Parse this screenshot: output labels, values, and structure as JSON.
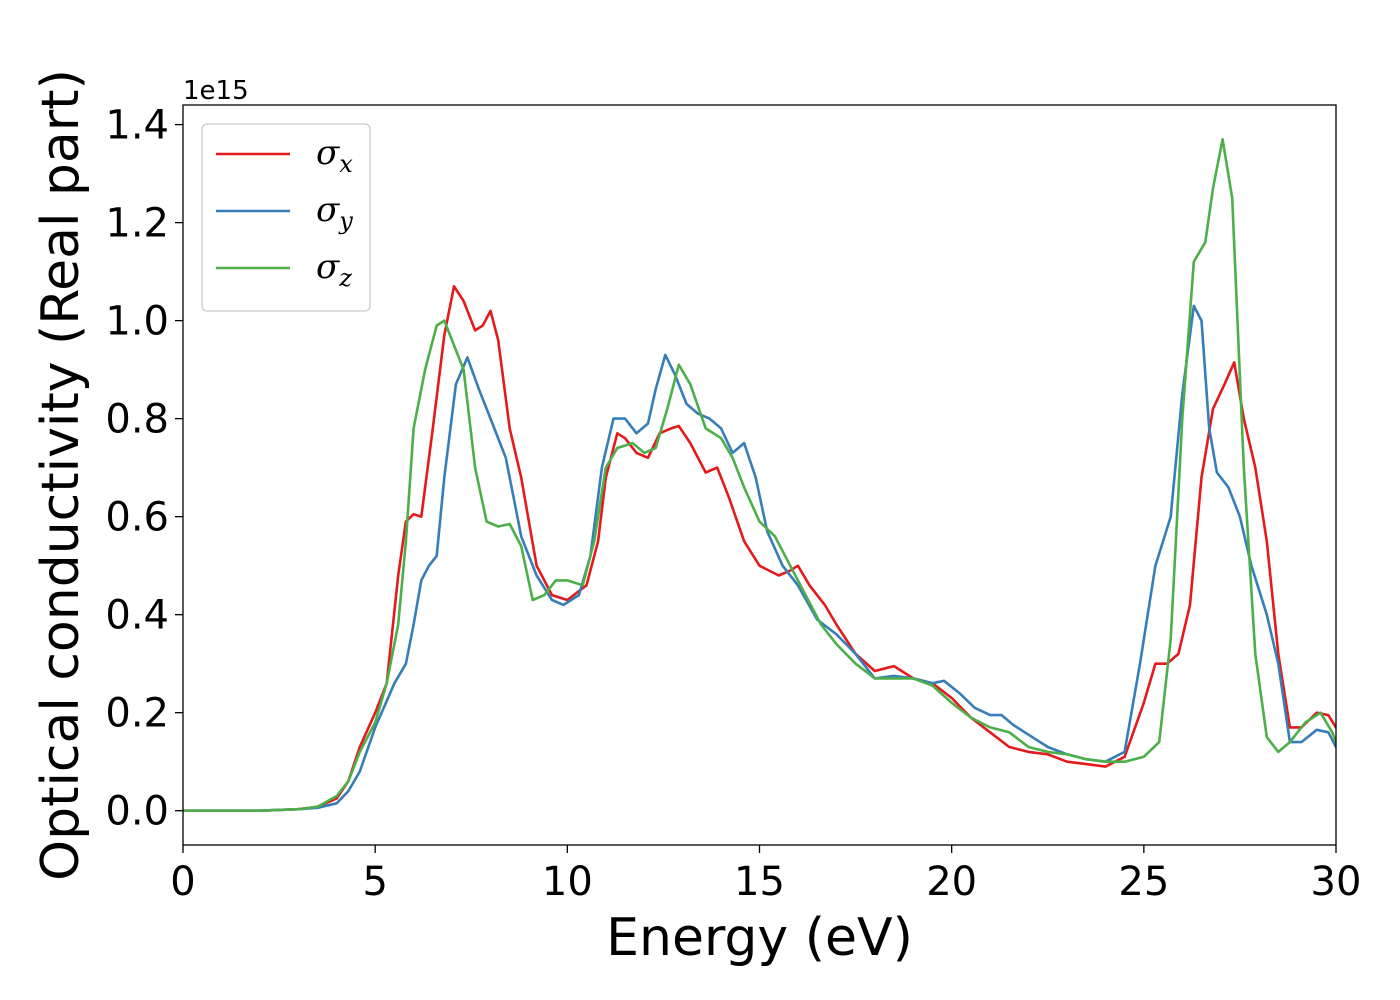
{
  "chart_data": {
    "type": "line",
    "xlabel": "Energy (eV)",
    "ylabel": "Optical conductivity (Real part)",
    "offset_text": "1e15",
    "xlim": [
      0,
      30
    ],
    "ylim": [
      -0.07,
      1.44
    ],
    "x_ticks": [
      0,
      5,
      10,
      15,
      20,
      25,
      30
    ],
    "x_tick_labels": [
      "0",
      "5",
      "10",
      "15",
      "20",
      "25",
      "30"
    ],
    "y_ticks": [
      0.0,
      0.2,
      0.4,
      0.6,
      0.8,
      1.0,
      1.2,
      1.4
    ],
    "y_tick_labels": [
      "0.0",
      "0.2",
      "0.4",
      "0.6",
      "0.8",
      "1.0",
      "1.2",
      "1.4"
    ],
    "grid": false,
    "legend_position": "top-left",
    "series": [
      {
        "name": "σx",
        "symbol": "σ",
        "subscript": "x",
        "color": "#e41a1c",
        "points": [
          [
            0,
            0
          ],
          [
            2,
            0
          ],
          [
            3,
            0.003
          ],
          [
            3.5,
            0.008
          ],
          [
            4,
            0.025
          ],
          [
            4.3,
            0.06
          ],
          [
            4.6,
            0.13
          ],
          [
            5,
            0.2
          ],
          [
            5.3,
            0.26
          ],
          [
            5.6,
            0.48
          ],
          [
            5.8,
            0.59
          ],
          [
            6,
            0.605
          ],
          [
            6.2,
            0.6
          ],
          [
            6.5,
            0.78
          ],
          [
            6.8,
            0.97
          ],
          [
            7.05,
            1.07
          ],
          [
            7.3,
            1.04
          ],
          [
            7.6,
            0.98
          ],
          [
            7.8,
            0.99
          ],
          [
            8,
            1.02
          ],
          [
            8.2,
            0.96
          ],
          [
            8.5,
            0.78
          ],
          [
            8.8,
            0.68
          ],
          [
            9.2,
            0.5
          ],
          [
            9.6,
            0.44
          ],
          [
            10,
            0.43
          ],
          [
            10.5,
            0.46
          ],
          [
            10.8,
            0.55
          ],
          [
            11,
            0.68
          ],
          [
            11.3,
            0.77
          ],
          [
            11.5,
            0.76
          ],
          [
            11.8,
            0.73
          ],
          [
            12.1,
            0.72
          ],
          [
            12.4,
            0.77
          ],
          [
            12.7,
            0.78
          ],
          [
            12.9,
            0.785
          ],
          [
            13.2,
            0.75
          ],
          [
            13.6,
            0.69
          ],
          [
            13.9,
            0.7
          ],
          [
            14.2,
            0.64
          ],
          [
            14.6,
            0.55
          ],
          [
            15,
            0.5
          ],
          [
            15.5,
            0.48
          ],
          [
            15.8,
            0.49
          ],
          [
            16,
            0.5
          ],
          [
            16.3,
            0.46
          ],
          [
            16.7,
            0.42
          ],
          [
            17,
            0.38
          ],
          [
            17.5,
            0.32
          ],
          [
            18,
            0.285
          ],
          [
            18.5,
            0.295
          ],
          [
            19,
            0.27
          ],
          [
            19.5,
            0.26
          ],
          [
            20,
            0.23
          ],
          [
            20.5,
            0.19
          ],
          [
            21,
            0.16
          ],
          [
            21.5,
            0.13
          ],
          [
            22,
            0.12
          ],
          [
            22.5,
            0.115
          ],
          [
            23,
            0.1
          ],
          [
            23.5,
            0.095
          ],
          [
            24,
            0.09
          ],
          [
            24.5,
            0.11
          ],
          [
            25,
            0.22
          ],
          [
            25.3,
            0.3
          ],
          [
            25.6,
            0.3
          ],
          [
            25.9,
            0.32
          ],
          [
            26.2,
            0.42
          ],
          [
            26.5,
            0.68
          ],
          [
            26.8,
            0.82
          ],
          [
            27.1,
            0.87
          ],
          [
            27.35,
            0.915
          ],
          [
            27.6,
            0.8
          ],
          [
            27.9,
            0.7
          ],
          [
            28.2,
            0.55
          ],
          [
            28.5,
            0.32
          ],
          [
            28.8,
            0.17
          ],
          [
            29.1,
            0.17
          ],
          [
            29.5,
            0.2
          ],
          [
            29.8,
            0.195
          ],
          [
            30,
            0.17
          ]
        ]
      },
      {
        "name": "σy",
        "symbol": "σ",
        "subscript": "y",
        "color": "#377eb8",
        "points": [
          [
            0,
            0
          ],
          [
            2,
            0
          ],
          [
            3,
            0.003
          ],
          [
            3.5,
            0.006
          ],
          [
            4,
            0.015
          ],
          [
            4.3,
            0.04
          ],
          [
            4.6,
            0.08
          ],
          [
            5,
            0.17
          ],
          [
            5.5,
            0.26
          ],
          [
            5.8,
            0.3
          ],
          [
            6,
            0.38
          ],
          [
            6.2,
            0.47
          ],
          [
            6.4,
            0.5
          ],
          [
            6.6,
            0.52
          ],
          [
            6.8,
            0.68
          ],
          [
            7.1,
            0.87
          ],
          [
            7.4,
            0.925
          ],
          [
            7.7,
            0.86
          ],
          [
            8,
            0.8
          ],
          [
            8.4,
            0.72
          ],
          [
            8.8,
            0.56
          ],
          [
            9.2,
            0.48
          ],
          [
            9.6,
            0.43
          ],
          [
            9.9,
            0.42
          ],
          [
            10.3,
            0.44
          ],
          [
            10.6,
            0.52
          ],
          [
            10.9,
            0.7
          ],
          [
            11.2,
            0.8
          ],
          [
            11.5,
            0.8
          ],
          [
            11.8,
            0.77
          ],
          [
            12.1,
            0.79
          ],
          [
            12.3,
            0.86
          ],
          [
            12.55,
            0.93
          ],
          [
            12.8,
            0.89
          ],
          [
            13.1,
            0.83
          ],
          [
            13.4,
            0.81
          ],
          [
            13.7,
            0.8
          ],
          [
            14,
            0.78
          ],
          [
            14.3,
            0.73
          ],
          [
            14.6,
            0.75
          ],
          [
            14.9,
            0.68
          ],
          [
            15.2,
            0.57
          ],
          [
            15.6,
            0.5
          ],
          [
            16,
            0.46
          ],
          [
            16.5,
            0.39
          ],
          [
            17,
            0.36
          ],
          [
            17.5,
            0.32
          ],
          [
            18,
            0.27
          ],
          [
            18.5,
            0.275
          ],
          [
            19,
            0.27
          ],
          [
            19.5,
            0.26
          ],
          [
            19.8,
            0.265
          ],
          [
            20.2,
            0.24
          ],
          [
            20.6,
            0.21
          ],
          [
            21,
            0.195
          ],
          [
            21.3,
            0.195
          ],
          [
            21.6,
            0.175
          ],
          [
            22,
            0.155
          ],
          [
            22.5,
            0.13
          ],
          [
            23,
            0.115
          ],
          [
            23.5,
            0.105
          ],
          [
            24,
            0.1
          ],
          [
            24.5,
            0.12
          ],
          [
            24.9,
            0.3
          ],
          [
            25.3,
            0.5
          ],
          [
            25.7,
            0.6
          ],
          [
            26,
            0.85
          ],
          [
            26.3,
            1.03
          ],
          [
            26.5,
            1.0
          ],
          [
            26.7,
            0.78
          ],
          [
            26.9,
            0.69
          ],
          [
            27.2,
            0.66
          ],
          [
            27.5,
            0.6
          ],
          [
            27.8,
            0.5
          ],
          [
            28.2,
            0.4
          ],
          [
            28.5,
            0.3
          ],
          [
            28.8,
            0.14
          ],
          [
            29.1,
            0.14
          ],
          [
            29.5,
            0.165
          ],
          [
            29.8,
            0.16
          ],
          [
            30,
            0.13
          ]
        ]
      },
      {
        "name": "σz",
        "symbol": "σ",
        "subscript": "z",
        "color": "#4daf4a",
        "points": [
          [
            0,
            0
          ],
          [
            2,
            0
          ],
          [
            3,
            0.003
          ],
          [
            3.5,
            0.008
          ],
          [
            4,
            0.03
          ],
          [
            4.3,
            0.06
          ],
          [
            4.6,
            0.12
          ],
          [
            5,
            0.18
          ],
          [
            5.3,
            0.26
          ],
          [
            5.6,
            0.38
          ],
          [
            5.8,
            0.55
          ],
          [
            6,
            0.78
          ],
          [
            6.3,
            0.9
          ],
          [
            6.6,
            0.99
          ],
          [
            6.8,
            1.0
          ],
          [
            7,
            0.96
          ],
          [
            7.3,
            0.9
          ],
          [
            7.6,
            0.7
          ],
          [
            7.9,
            0.59
          ],
          [
            8.2,
            0.58
          ],
          [
            8.5,
            0.585
          ],
          [
            8.8,
            0.54
          ],
          [
            9.1,
            0.43
          ],
          [
            9.4,
            0.44
          ],
          [
            9.7,
            0.47
          ],
          [
            10,
            0.47
          ],
          [
            10.4,
            0.46
          ],
          [
            10.7,
            0.55
          ],
          [
            11,
            0.7
          ],
          [
            11.3,
            0.74
          ],
          [
            11.7,
            0.75
          ],
          [
            12,
            0.73
          ],
          [
            12.3,
            0.74
          ],
          [
            12.6,
            0.82
          ],
          [
            12.9,
            0.91
          ],
          [
            13.2,
            0.87
          ],
          [
            13.6,
            0.78
          ],
          [
            14,
            0.76
          ],
          [
            14.3,
            0.72
          ],
          [
            14.6,
            0.66
          ],
          [
            15,
            0.59
          ],
          [
            15.4,
            0.56
          ],
          [
            15.8,
            0.5
          ],
          [
            16.2,
            0.44
          ],
          [
            16.6,
            0.38
          ],
          [
            17,
            0.34
          ],
          [
            17.5,
            0.3
          ],
          [
            18,
            0.27
          ],
          [
            18.5,
            0.27
          ],
          [
            19,
            0.27
          ],
          [
            19.5,
            0.255
          ],
          [
            20,
            0.22
          ],
          [
            20.5,
            0.19
          ],
          [
            21,
            0.17
          ],
          [
            21.5,
            0.16
          ],
          [
            22,
            0.13
          ],
          [
            22.5,
            0.12
          ],
          [
            23,
            0.115
          ],
          [
            23.5,
            0.105
          ],
          [
            24,
            0.1
          ],
          [
            24.5,
            0.1
          ],
          [
            25,
            0.11
          ],
          [
            25.4,
            0.14
          ],
          [
            25.7,
            0.35
          ],
          [
            26,
            0.8
          ],
          [
            26.3,
            1.12
          ],
          [
            26.6,
            1.16
          ],
          [
            26.8,
            1.27
          ],
          [
            27.05,
            1.37
          ],
          [
            27.3,
            1.25
          ],
          [
            27.6,
            0.7
          ],
          [
            27.9,
            0.32
          ],
          [
            28.2,
            0.15
          ],
          [
            28.5,
            0.12
          ],
          [
            28.8,
            0.14
          ],
          [
            29.2,
            0.18
          ],
          [
            29.6,
            0.2
          ],
          [
            29.9,
            0.16
          ],
          [
            30,
            0.14
          ]
        ]
      }
    ]
  }
}
